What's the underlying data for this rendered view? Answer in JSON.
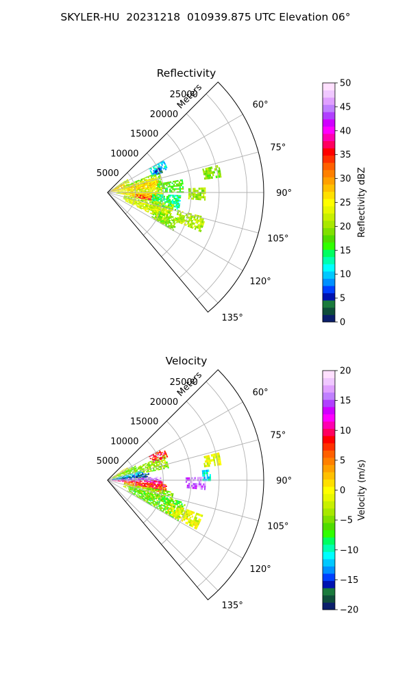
{
  "figure": {
    "title": "SKYLER-HU  20231218  010939.875 UTC Elevation 06°"
  },
  "chart_data": [
    {
      "type": "heatmap",
      "title": "Reflectivity",
      "projection": "polar-sector",
      "range_axis_label": "Meters",
      "range_ticks": [
        5000,
        10000,
        15000,
        20000,
        25000
      ],
      "range_tick_labels": [
        "5000",
        "10000",
        "15000",
        "20000",
        "25000"
      ],
      "range_lim": [
        0,
        28000
      ],
      "azimuth_lim_deg": [
        45,
        140
      ],
      "azimuth_ticks_deg": [
        60,
        75,
        90,
        105,
        120,
        135
      ],
      "azimuth_tick_labels": [
        "60°",
        "75°",
        "90°",
        "105°",
        "120°",
        "135°"
      ],
      "grid": true,
      "colorbar": {
        "label": "Reflectivity dBZ",
        "min": 0,
        "max": 50,
        "ticks": [
          0,
          5,
          10,
          15,
          20,
          25,
          30,
          35,
          40,
          45,
          50
        ],
        "tick_labels": [
          "0",
          "5",
          "10",
          "15",
          "20",
          "25",
          "30",
          "35",
          "40",
          "45",
          "50"
        ],
        "colors": [
          "#0b1f6b",
          "#0f4d3a",
          "#1a7a3c",
          "#0012b0",
          "#0040ff",
          "#0090ff",
          "#00c8ff",
          "#00ffff",
          "#00ffb0",
          "#00ff60",
          "#30ff00",
          "#50dc00",
          "#80e000",
          "#a8e800",
          "#c8f000",
          "#e8f800",
          "#ffff00",
          "#ffe000",
          "#ffc000",
          "#ffa000",
          "#ff8000",
          "#ff6000",
          "#ff3000",
          "#ff0000",
          "#ff0060",
          "#ff00b0",
          "#ff00ff",
          "#d000ff",
          "#b040ff",
          "#c080ff",
          "#e0a0ff",
          "#f0c8ff",
          "#ffe0ff"
        ]
      },
      "echo_regions": [
        {
          "az": [
            56,
            70
          ],
          "r": [
            700,
            4200
          ],
          "value": 22
        },
        {
          "az": [
            60,
            76
          ],
          "r": [
            500,
            3200
          ],
          "value": 28
        },
        {
          "az": [
            68,
            80
          ],
          "r": [
            3000,
            10000
          ],
          "value": 19
        },
        {
          "az": [
            72,
            84
          ],
          "r": [
            600,
            9000
          ],
          "value": 25
        },
        {
          "az": [
            76,
            86
          ],
          "r": [
            3500,
            9000
          ],
          "value": 27
        },
        {
          "az": [
            80,
            90
          ],
          "r": [
            9000,
            13500
          ],
          "value": 17
        },
        {
          "az": [
            84,
            96
          ],
          "r": [
            1500,
            10000
          ],
          "value": 22
        },
        {
          "az": [
            88,
            98
          ],
          "r": [
            2500,
            9000
          ],
          "value": 26
        },
        {
          "az": [
            92,
            100
          ],
          "r": [
            4000,
            8500
          ],
          "value": 28
        },
        {
          "az": [
            94,
            100
          ],
          "r": [
            5000,
            8000
          ],
          "value": 34
        },
        {
          "az": [
            92,
            104
          ],
          "r": [
            8000,
            13000
          ],
          "value": 14
        },
        {
          "az": [
            100,
            112
          ],
          "r": [
            3000,
            12000
          ],
          "value": 21
        },
        {
          "az": [
            106,
            116
          ],
          "r": [
            3500,
            11500
          ],
          "value": 23
        },
        {
          "az": [
            110,
            120
          ],
          "r": [
            9000,
            13500
          ],
          "value": 19
        },
        {
          "az": [
            104,
            112
          ],
          "r": [
            13000,
            18000
          ],
          "value": 21
        },
        {
          "az": [
            87,
            94
          ],
          "r": [
            14500,
            17500
          ],
          "value": 20
        },
        {
          "az": [
            76,
            82
          ],
          "r": [
            17500,
            20500
          ],
          "value": 19
        },
        {
          "az": [
            60,
            68
          ],
          "r": [
            8500,
            11500
          ],
          "value": 11
        },
        {
          "az": [
            64,
            70
          ],
          "r": [
            9000,
            10500
          ],
          "value": 6
        }
      ]
    },
    {
      "type": "heatmap",
      "title": "Velocity",
      "projection": "polar-sector",
      "range_axis_label": "Meters",
      "range_ticks": [
        5000,
        10000,
        15000,
        20000,
        25000
      ],
      "range_tick_labels": [
        "5000",
        "10000",
        "15000",
        "20000",
        "25000"
      ],
      "range_lim": [
        0,
        28000
      ],
      "azimuth_lim_deg": [
        45,
        140
      ],
      "azimuth_ticks_deg": [
        60,
        75,
        90,
        105,
        120,
        135
      ],
      "azimuth_tick_labels": [
        "60°",
        "75°",
        "90°",
        "105°",
        "120°",
        "135°"
      ],
      "grid": true,
      "colorbar": {
        "label": "Velocity (m/s)",
        "min": -20,
        "max": 20,
        "ticks": [
          -20,
          -15,
          -10,
          -5,
          0,
          5,
          10,
          15,
          20
        ],
        "tick_labels": [
          "−20",
          "−15",
          "−10",
          "−5",
          "0",
          "5",
          "10",
          "15",
          "20"
        ],
        "colors": [
          "#0b1f6b",
          "#0f4d3a",
          "#1a7a3c",
          "#0012b0",
          "#0040ff",
          "#0090ff",
          "#00c8ff",
          "#00ffff",
          "#00ffb0",
          "#00ff60",
          "#30ff00",
          "#50dc00",
          "#80e000",
          "#a8e800",
          "#c8f000",
          "#e8f800",
          "#ffff00",
          "#ffe000",
          "#ffc000",
          "#ffa000",
          "#ff8000",
          "#ff6000",
          "#ff3000",
          "#ff0000",
          "#ff0060",
          "#ff00b0",
          "#ff00ff",
          "#d000ff",
          "#b040ff",
          "#c080ff",
          "#e0a0ff",
          "#f0c8ff",
          "#ffe0ff"
        ]
      },
      "echo_regions": [
        {
          "az": [
            56,
            68
          ],
          "r": [
            600,
            4000
          ],
          "value": 0
        },
        {
          "az": [
            62,
            74
          ],
          "r": [
            1000,
            5500
          ],
          "value": -5
        },
        {
          "az": [
            66,
            78
          ],
          "r": [
            5000,
            11000
          ],
          "value": -4
        },
        {
          "az": [
            74,
            84
          ],
          "r": [
            800,
            6500
          ],
          "value": -12
        },
        {
          "az": [
            80,
            88
          ],
          "r": [
            800,
            7500
          ],
          "value": -16
        },
        {
          "az": [
            86,
            92
          ],
          "r": [
            800,
            9500
          ],
          "value": 16
        },
        {
          "az": [
            90,
            96
          ],
          "r": [
            800,
            10000
          ],
          "value": 10
        },
        {
          "az": [
            94,
            102
          ],
          "r": [
            3000,
            10500
          ],
          "value": 5
        },
        {
          "az": [
            94,
            100
          ],
          "r": [
            5000,
            10500
          ],
          "value": 8
        },
        {
          "az": [
            100,
            112
          ],
          "r": [
            3000,
            12000
          ],
          "value": -4
        },
        {
          "az": [
            106,
            120
          ],
          "r": [
            4000,
            14500
          ],
          "value": -6
        },
        {
          "az": [
            110,
            118
          ],
          "r": [
            12000,
            18000
          ],
          "value": -1
        },
        {
          "az": [
            88,
            95
          ],
          "r": [
            14000,
            17500
          ],
          "value": 16
        },
        {
          "az": [
            84,
            90
          ],
          "r": [
            17000,
            18500
          ],
          "value": -11
        },
        {
          "az": [
            76,
            82
          ],
          "r": [
            17500,
            20500
          ],
          "value": -1
        },
        {
          "az": [
            60,
            68
          ],
          "r": [
            8500,
            11500
          ],
          "value": 8
        }
      ]
    }
  ]
}
